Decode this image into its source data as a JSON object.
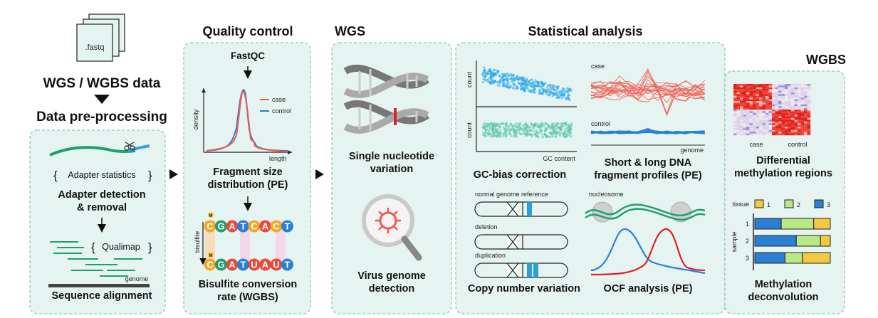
{
  "colors": {
    "panel_fill": "#e6f4f1",
    "panel_border": "#8fc7bb",
    "case": "#f05a4f",
    "control": "#2a7fd4",
    "green": "#1f9e6e",
    "gc_top": "#2aa7e6",
    "gc_bottom": "#59c7a6"
  },
  "input": {
    "file_label": ".fastq",
    "data_title": "WGS / WGBS data",
    "preprocess_title": "Data pre-processing"
  },
  "preprocessing": {
    "adapter_stats": "Adapter statistics",
    "adapter_title_1": "Adapter detection",
    "adapter_title_2": "& removal",
    "qualimap": "Qualimap",
    "genome": "genome",
    "alignment_title": "Sequence alignment"
  },
  "qc": {
    "header": "Quality control",
    "fastqc": "FastQC",
    "density": "density",
    "length": "length",
    "legend_case": "case",
    "legend_control": "control",
    "frag_title_1": "Fragment size",
    "frag_title_2": "distribution (PE)",
    "bisulfite": "bisulfite",
    "methyl_mark": "M",
    "top_seq": [
      "C",
      "G",
      "A",
      "T",
      "C",
      "A",
      "C",
      "T"
    ],
    "bottom_seq": [
      "C",
      "G",
      "A",
      "T",
      "U",
      "A",
      "U",
      "T"
    ],
    "bis_title_1": "Bisulfite conversion",
    "bis_title_2": "rate (WGBS)"
  },
  "wgs": {
    "header": "WGS",
    "snv_title_1": "Single nucleotide",
    "snv_title_2": "variation",
    "virus_title_1": "Virus genome",
    "virus_title_2": "detection"
  },
  "stats": {
    "header": "Statistical analysis",
    "count": "count",
    "gc_content": "GC content",
    "gc_title": "GC-bias correction",
    "case": "case",
    "control": "control",
    "genome": "genome",
    "frag_profile_title_1": "Short & long DNA",
    "frag_profile_title_2": "fragment profiles (PE)",
    "normal_ref": "normal genome reference",
    "deletion": "deletion",
    "duplication": "duplication",
    "cnv_title": "Copy number variation",
    "nucleosome": "nucleosome",
    "ocf_title": "OCF analysis (PE)"
  },
  "wgbs": {
    "header": "WGBS",
    "case": "case",
    "control": "control",
    "dmr_title_1": "Differential",
    "dmr_title_2": "methylation regions",
    "tissue": "tissue",
    "tissue_labels": [
      "1",
      "2",
      "3"
    ],
    "sample": "sample",
    "sample_labels": [
      "1",
      "2",
      "3"
    ],
    "deconv_title_1": "Methylation",
    "deconv_title_2": "deconvolution"
  },
  "deconvolution": {
    "tissue_colors": [
      "#f5c842",
      "#b8e986",
      "#2a7fd4"
    ],
    "samples": [
      {
        "fractions": [
          0.22,
          0.43,
          0.35
        ]
      },
      {
        "fractions": [
          0.13,
          0.32,
          0.55
        ]
      },
      {
        "fractions": [
          0.37,
          0.23,
          0.4
        ]
      }
    ]
  }
}
